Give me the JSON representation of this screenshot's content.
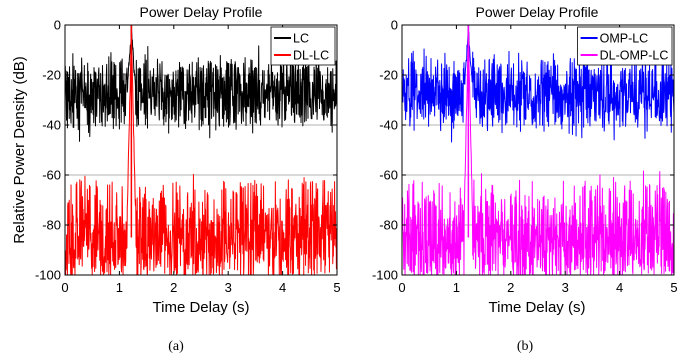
{
  "chart_data": [
    {
      "id": "a",
      "type": "line",
      "title": "Power Delay Profile",
      "xlabel": "Time Delay (s)",
      "ylabel": "Relative Power Density (dB)",
      "xlim": [
        0,
        5
      ],
      "ylim": [
        -100,
        0
      ],
      "xticks": [
        0,
        1,
        2,
        3,
        4,
        5
      ],
      "yticks": [
        -100,
        -80,
        -60,
        -40,
        -20,
        0
      ],
      "ytick_labels": [
        "-100",
        "-80",
        "-60",
        "-40",
        "-20",
        "0"
      ],
      "xtick_labels": [
        "0",
        "1",
        "2",
        "3",
        "4",
        "5"
      ],
      "grid": "horizontal",
      "legend": "top-right",
      "caption": "(a)",
      "series": [
        {
          "name": "LC",
          "color": "#000000",
          "noise_floor_db": -27,
          "noise_range_db": [
            -41,
            -14
          ],
          "peak": {
            "x": 1.22,
            "y": 0
          },
          "peak_width_s": 0.08
        },
        {
          "name": "DL-LC",
          "color": "#ff0000",
          "noise_floor_db": -85,
          "noise_range_db": [
            -100,
            -62
          ],
          "peak": {
            "x": 1.22,
            "y": 0
          },
          "peak_width_s": 0.08
        }
      ]
    },
    {
      "id": "b",
      "type": "line",
      "title": "Power Delay Profile",
      "xlabel": "Time Delay (s)",
      "ylabel": "",
      "xlim": [
        0,
        5
      ],
      "ylim": [
        -100,
        0
      ],
      "xticks": [
        0,
        1,
        2,
        3,
        4,
        5
      ],
      "yticks": [
        -100,
        -80,
        -60,
        -40,
        -20,
        0
      ],
      "ytick_labels": [
        "-100",
        "-80",
        "-60",
        "-40",
        "-20",
        "0"
      ],
      "xtick_labels": [
        "0",
        "1",
        "2",
        "3",
        "4",
        "5"
      ],
      "grid": "horizontal",
      "legend": "top-right",
      "caption": "(b)",
      "series": [
        {
          "name": "OMP-LC",
          "color": "#0000ff",
          "noise_floor_db": -27,
          "noise_range_db": [
            -41,
            -14
          ],
          "peak": {
            "x": 1.22,
            "y": 0
          },
          "peak_width_s": 0.08
        },
        {
          "name": "DL-OMP-LC",
          "color": "#ff00ff",
          "noise_floor_db": -85,
          "noise_range_db": [
            -100,
            -62
          ],
          "peak": {
            "x": 1.22,
            "y": 0
          },
          "peak_width_s": 0.08
        }
      ]
    }
  ]
}
